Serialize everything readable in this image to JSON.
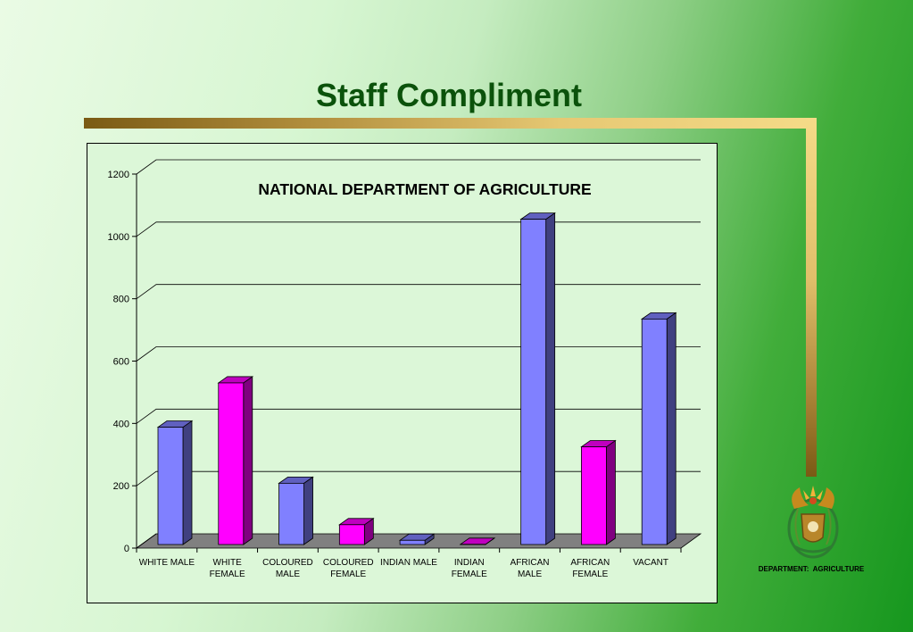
{
  "slide": {
    "title": "Staff Compliment",
    "footer_label": "DEPARTMENT:  AGRICULTURE"
  },
  "colors": {
    "male_bar": "#8080ff",
    "female_bar": "#ff00ff",
    "accent_gold": "#e6c873",
    "title_green": "#0b520b"
  },
  "icons": {
    "logo": "coat-of-arms-icon"
  },
  "chart_data": {
    "type": "bar",
    "title": "NATIONAL DEPARTMENT OF AGRICULTURE",
    "categories": [
      [
        "WHITE MALE"
      ],
      [
        "WHITE",
        "FEMALE"
      ],
      [
        "COLOURED",
        "MALE"
      ],
      [
        "COLOURED",
        "FEMALE"
      ],
      [
        "INDIAN MALE"
      ],
      [
        "INDIAN",
        "FEMALE"
      ],
      [
        "AFRICAN",
        "MALE"
      ],
      [
        "AFRICAN",
        "FEMALE"
      ],
      [
        "VACANT"
      ]
    ],
    "values": [
      388,
      530,
      208,
      75,
      25,
      12,
      1055,
      325,
      735
    ],
    "bar_colors": [
      "#8080ff",
      "#ff00ff",
      "#8080ff",
      "#ff00ff",
      "#8080ff",
      "#ff00ff",
      "#8080ff",
      "#ff00ff",
      "#8080ff"
    ],
    "ylim": [
      0,
      1200
    ],
    "yticks": [
      0,
      200,
      400,
      600,
      800,
      1000,
      1200
    ],
    "grid": true,
    "legend": "none",
    "style": "3d-bar"
  }
}
